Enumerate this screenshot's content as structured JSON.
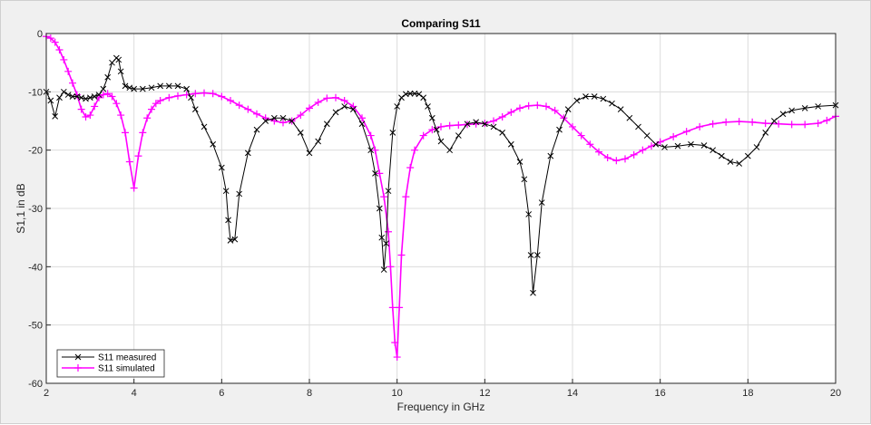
{
  "chart_data": {
    "type": "line",
    "title": "Comparing S11",
    "xlabel": "Frequency in GHz",
    "ylabel": "S1,1 in dB",
    "xlim": [
      2,
      20
    ],
    "ylim": [
      -60,
      0
    ],
    "xticks": [
      2,
      4,
      6,
      8,
      10,
      12,
      14,
      16,
      18,
      20
    ],
    "yticks": [
      0,
      -10,
      -20,
      -30,
      -40,
      -50,
      -60
    ],
    "grid": true,
    "legend_position": "bottom-left",
    "series": [
      {
        "name": "S11 measured",
        "color": "#000000",
        "marker": "x",
        "x": [
          2.0,
          2.1,
          2.2,
          2.3,
          2.4,
          2.5,
          2.6,
          2.7,
          2.8,
          2.9,
          3.0,
          3.1,
          3.2,
          3.3,
          3.4,
          3.5,
          3.6,
          3.65,
          3.7,
          3.8,
          3.9,
          4.0,
          4.2,
          4.4,
          4.6,
          4.8,
          5.0,
          5.2,
          5.3,
          5.4,
          5.6,
          5.8,
          6.0,
          6.1,
          6.15,
          6.2,
          6.3,
          6.4,
          6.6,
          6.8,
          7.0,
          7.2,
          7.4,
          7.6,
          7.8,
          8.0,
          8.2,
          8.4,
          8.6,
          8.8,
          9.0,
          9.2,
          9.4,
          9.5,
          9.6,
          9.65,
          9.7,
          9.75,
          9.8,
          9.9,
          10.0,
          10.1,
          10.2,
          10.3,
          10.4,
          10.5,
          10.6,
          10.7,
          10.8,
          10.9,
          11.0,
          11.2,
          11.4,
          11.6,
          11.8,
          12.0,
          12.2,
          12.4,
          12.6,
          12.8,
          12.9,
          13.0,
          13.05,
          13.1,
          13.2,
          13.3,
          13.5,
          13.7,
          13.9,
          14.1,
          14.3,
          14.5,
          14.7,
          14.9,
          15.1,
          15.3,
          15.5,
          15.7,
          15.9,
          16.1,
          16.4,
          16.7,
          17.0,
          17.2,
          17.4,
          17.6,
          17.8,
          18.0,
          18.2,
          18.4,
          18.6,
          18.8,
          19.0,
          19.3,
          19.6,
          20.0
        ],
        "y": [
          -10.0,
          -11.5,
          -14.2,
          -11.0,
          -10.0,
          -10.5,
          -10.8,
          -10.8,
          -11.0,
          -11.2,
          -11.0,
          -10.8,
          -10.5,
          -9.5,
          -7.5,
          -5.0,
          -4.2,
          -4.5,
          -6.5,
          -9.0,
          -9.3,
          -9.5,
          -9.5,
          -9.3,
          -9.0,
          -9.0,
          -9.0,
          -9.5,
          -11.0,
          -13.0,
          -16.0,
          -19.0,
          -23.0,
          -27.0,
          -32.0,
          -35.5,
          -35.3,
          -27.5,
          -20.5,
          -16.5,
          -15.0,
          -14.5,
          -14.5,
          -15.0,
          -17.0,
          -20.5,
          -18.5,
          -15.5,
          -13.5,
          -12.5,
          -13.0,
          -15.5,
          -20.0,
          -24.0,
          -30.0,
          -35.0,
          -40.5,
          -36.0,
          -27.0,
          -17.0,
          -12.5,
          -11.0,
          -10.4,
          -10.3,
          -10.3,
          -10.4,
          -11.0,
          -12.5,
          -14.5,
          -16.5,
          -18.5,
          -20.0,
          -17.5,
          -15.5,
          -15.2,
          -15.5,
          -16.0,
          -17.0,
          -19.0,
          -22.0,
          -25.0,
          -31.0,
          -38.0,
          -44.5,
          -38.0,
          -29.0,
          -21.0,
          -16.5,
          -13.0,
          -11.5,
          -10.8,
          -10.8,
          -11.2,
          -12.0,
          -13.0,
          -14.5,
          -16.0,
          -17.5,
          -19.0,
          -19.5,
          -19.3,
          -19.0,
          -19.2,
          -20.0,
          -21.0,
          -22.0,
          -22.3,
          -21.0,
          -19.5,
          -17.0,
          -15.0,
          -13.8,
          -13.2,
          -12.8,
          -12.5,
          -12.3
        ]
      },
      {
        "name": "S11 simulated",
        "color": "#ff00ff",
        "marker": "+",
        "x": [
          2.0,
          2.1,
          2.2,
          2.3,
          2.4,
          2.5,
          2.6,
          2.7,
          2.8,
          2.9,
          3.0,
          3.1,
          3.2,
          3.3,
          3.4,
          3.5,
          3.6,
          3.7,
          3.8,
          3.9,
          4.0,
          4.1,
          4.2,
          4.3,
          4.4,
          4.5,
          4.6,
          4.8,
          5.0,
          5.2,
          5.4,
          5.6,
          5.8,
          6.0,
          6.2,
          6.4,
          6.6,
          6.8,
          7.0,
          7.2,
          7.4,
          7.6,
          7.8,
          8.0,
          8.2,
          8.4,
          8.6,
          8.8,
          9.0,
          9.2,
          9.4,
          9.5,
          9.6,
          9.7,
          9.8,
          9.85,
          9.9,
          9.95,
          10.0,
          10.05,
          10.1,
          10.2,
          10.3,
          10.4,
          10.6,
          10.8,
          11.0,
          11.2,
          11.4,
          11.6,
          11.8,
          12.0,
          12.2,
          12.4,
          12.6,
          12.8,
          13.0,
          13.2,
          13.4,
          13.6,
          13.8,
          14.0,
          14.2,
          14.4,
          14.6,
          14.8,
          15.0,
          15.2,
          15.4,
          15.6,
          15.8,
          16.0,
          16.3,
          16.6,
          16.9,
          17.2,
          17.5,
          17.8,
          18.1,
          18.4,
          18.7,
          19.0,
          19.3,
          19.6,
          19.8,
          20.0
        ],
        "y": [
          -0.5,
          -0.8,
          -1.5,
          -2.8,
          -4.5,
          -6.5,
          -8.5,
          -10.5,
          -13.0,
          -14.3,
          -14.0,
          -12.5,
          -11.0,
          -10.5,
          -10.3,
          -10.8,
          -12.0,
          -14.0,
          -17.0,
          -22.0,
          -26.5,
          -21.0,
          -17.0,
          -14.5,
          -13.0,
          -12.0,
          -11.5,
          -11.0,
          -10.7,
          -10.5,
          -10.3,
          -10.2,
          -10.3,
          -10.8,
          -11.5,
          -12.3,
          -13.0,
          -13.8,
          -14.5,
          -15.0,
          -15.3,
          -15.0,
          -14.0,
          -12.8,
          -11.8,
          -11.1,
          -11.0,
          -11.5,
          -12.5,
          -14.5,
          -17.5,
          -20.0,
          -24.0,
          -28.0,
          -34.0,
          -40.0,
          -47.0,
          -53.0,
          -55.5,
          -47.0,
          -38.0,
          -28.0,
          -23.0,
          -20.0,
          -17.5,
          -16.5,
          -16.0,
          -15.8,
          -15.7,
          -15.6,
          -15.5,
          -15.4,
          -15.0,
          -14.3,
          -13.5,
          -12.8,
          -12.4,
          -12.3,
          -12.5,
          -13.2,
          -14.5,
          -16.0,
          -17.5,
          -19.0,
          -20.3,
          -21.3,
          -21.8,
          -21.5,
          -20.8,
          -20.0,
          -19.3,
          -18.6,
          -17.7,
          -16.8,
          -16.0,
          -15.5,
          -15.2,
          -15.1,
          -15.2,
          -15.4,
          -15.5,
          -15.6,
          -15.6,
          -15.4,
          -14.9,
          -14.2
        ]
      }
    ]
  }
}
